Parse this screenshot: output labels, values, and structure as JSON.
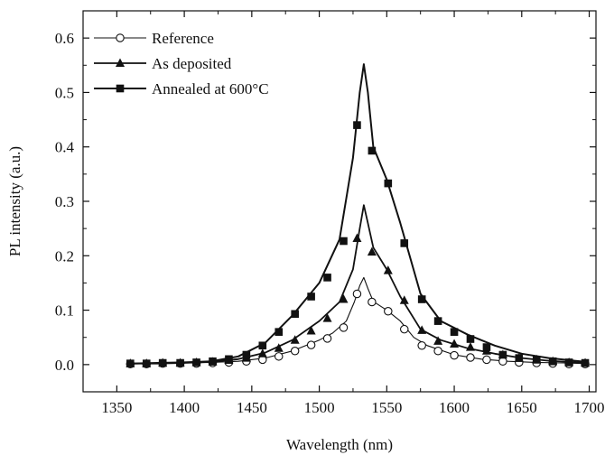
{
  "chart_data": {
    "type": "line",
    "xlabel": "Wavelength (nm)",
    "ylabel": "PL intensity (a.u.)",
    "xlim": [
      1325,
      1705
    ],
    "ylim": [
      -0.05,
      0.65
    ],
    "x_ticks": [
      1350,
      1400,
      1450,
      1500,
      1550,
      1600,
      1650,
      1700
    ],
    "y_ticks": [
      0.0,
      0.1,
      0.2,
      0.3,
      0.4,
      0.5,
      0.6
    ],
    "x_tick_labels": [
      "1350",
      "1400",
      "1450",
      "1500",
      "1550",
      "1600",
      "1650",
      "1700"
    ],
    "y_tick_labels": [
      "0.0",
      "0.1",
      "0.2",
      "0.3",
      "0.4",
      "0.5",
      "0.6"
    ],
    "grid": false,
    "legend_position": "top-left",
    "series": [
      {
        "name": "Reference",
        "marker": "open-circle",
        "color": "#111111",
        "curve": {
          "x": [
            1360,
            1380,
            1400,
            1420,
            1440,
            1460,
            1480,
            1500,
            1510,
            1520,
            1526,
            1530,
            1533,
            1536,
            1540,
            1550,
            1560,
            1570,
            1580,
            1600,
            1620,
            1640,
            1660,
            1680,
            1697
          ],
          "y": [
            0.002,
            0.002,
            0.003,
            0.004,
            0.006,
            0.012,
            0.025,
            0.045,
            0.058,
            0.08,
            0.115,
            0.145,
            0.16,
            0.14,
            0.116,
            0.1,
            0.08,
            0.05,
            0.035,
            0.018,
            0.01,
            0.006,
            0.004,
            0.003,
            0.002
          ]
        },
        "markers": {
          "x": [
            1360,
            1372,
            1384,
            1397,
            1409,
            1421,
            1433,
            1446,
            1458,
            1470,
            1482,
            1494,
            1506,
            1518,
            1528,
            1539,
            1551,
            1563,
            1576,
            1588,
            1600,
            1612,
            1624,
            1636,
            1648,
            1661,
            1673,
            1685,
            1697
          ],
          "y": [
            0.001,
            0.001,
            0.002,
            0.002,
            0.002,
            0.003,
            0.004,
            0.006,
            0.009,
            0.015,
            0.025,
            0.036,
            0.048,
            0.068,
            0.13,
            0.115,
            0.098,
            0.065,
            0.035,
            0.025,
            0.017,
            0.013,
            0.009,
            0.006,
            0.004,
            0.003,
            0.002,
            0.001,
            0.001
          ]
        }
      },
      {
        "name": "As deposited",
        "marker": "filled-triangle",
        "color": "#111111",
        "curve": {
          "x": [
            1360,
            1380,
            1400,
            1420,
            1440,
            1460,
            1480,
            1500,
            1515,
            1525,
            1530,
            1533,
            1536,
            1540,
            1550,
            1560,
            1575,
            1590,
            1610,
            1630,
            1650,
            1670,
            1697
          ],
          "y": [
            0.002,
            0.002,
            0.003,
            0.005,
            0.01,
            0.022,
            0.045,
            0.08,
            0.115,
            0.175,
            0.25,
            0.293,
            0.26,
            0.215,
            0.175,
            0.125,
            0.065,
            0.045,
            0.03,
            0.02,
            0.012,
            0.007,
            0.003
          ]
        },
        "markers": {
          "x": [
            1360,
            1372,
            1384,
            1397,
            1409,
            1421,
            1433,
            1446,
            1458,
            1470,
            1482,
            1494,
            1506,
            1518,
            1528,
            1539,
            1551,
            1563,
            1576,
            1588,
            1600,
            1612,
            1624,
            1636,
            1648,
            1661,
            1673,
            1685,
            1697
          ],
          "y": [
            0.002,
            0.002,
            0.003,
            0.003,
            0.004,
            0.005,
            0.008,
            0.012,
            0.02,
            0.03,
            0.045,
            0.062,
            0.085,
            0.12,
            0.232,
            0.207,
            0.173,
            0.118,
            0.063,
            0.043,
            0.038,
            0.032,
            0.025,
            0.018,
            0.012,
            0.009,
            0.006,
            0.004,
            0.003
          ]
        }
      },
      {
        "name": "Annealed at 600°C",
        "marker": "filled-square",
        "color": "#111111",
        "curve": {
          "x": [
            1360,
            1380,
            1400,
            1420,
            1440,
            1460,
            1480,
            1500,
            1515,
            1525,
            1530,
            1533,
            1536,
            1540,
            1550,
            1560,
            1575,
            1590,
            1610,
            1630,
            1650,
            1670,
            1697
          ],
          "y": [
            0.002,
            0.003,
            0.004,
            0.006,
            0.015,
            0.04,
            0.09,
            0.15,
            0.23,
            0.38,
            0.5,
            0.552,
            0.5,
            0.4,
            0.34,
            0.26,
            0.13,
            0.08,
            0.055,
            0.035,
            0.02,
            0.012,
            0.005
          ]
        },
        "markers": {
          "x": [
            1360,
            1372,
            1384,
            1397,
            1409,
            1421,
            1433,
            1446,
            1458,
            1470,
            1482,
            1494,
            1506,
            1518,
            1528,
            1539,
            1551,
            1563,
            1576,
            1588,
            1600,
            1612,
            1624,
            1636,
            1648,
            1661,
            1673,
            1685,
            1697
          ],
          "y": [
            0.002,
            0.002,
            0.003,
            0.003,
            0.004,
            0.006,
            0.01,
            0.018,
            0.035,
            0.06,
            0.093,
            0.125,
            0.16,
            0.227,
            0.44,
            0.393,
            0.333,
            0.223,
            0.12,
            0.08,
            0.06,
            0.047,
            0.032,
            0.018,
            0.012,
            0.009,
            0.006,
            0.004,
            0.003
          ]
        }
      }
    ]
  }
}
